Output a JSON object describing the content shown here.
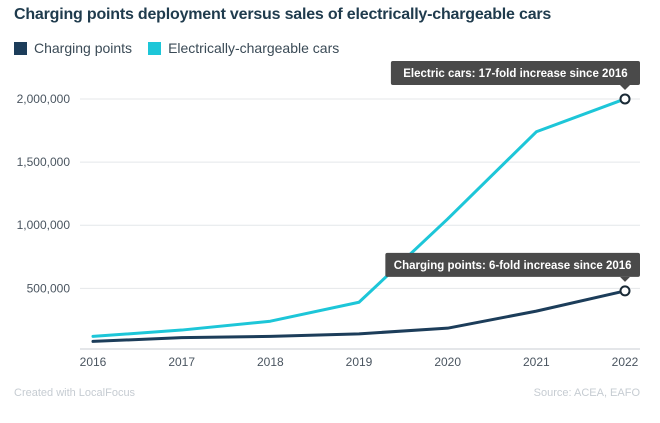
{
  "chart_data": {
    "type": "line",
    "title": "Charging points deployment versus sales of electrically-chargeable cars",
    "x": [
      "2016",
      "2017",
      "2018",
      "2019",
      "2020",
      "2021",
      "2022"
    ],
    "series": [
      {
        "name": "Charging points",
        "color": "#1c3d5a",
        "values": [
          80000,
          110000,
          120000,
          140000,
          185000,
          320000,
          480000
        ]
      },
      {
        "name": "Electrically-chargeable cars",
        "color": "#1dc6d8",
        "values": [
          120000,
          170000,
          240000,
          390000,
          1050000,
          1740000,
          2000000
        ]
      }
    ],
    "yticks": [
      "500,000",
      "1,000,000",
      "1,500,000",
      "2,000,000"
    ],
    "ytick_values": [
      500000,
      1000000,
      1500000,
      2000000
    ],
    "ylim": [
      20000,
      2150000
    ],
    "xlabel": "",
    "ylabel": "",
    "annotations": [
      {
        "series": 1,
        "index": 6,
        "text": "Electric cars: 17-fold increase since 2016"
      },
      {
        "series": 0,
        "index": 6,
        "text": "Charging points: 6-fold increase since 2016"
      }
    ]
  },
  "footer": {
    "credit": "Created with LocalFocus",
    "source": "Source: ACEA, EAFO"
  }
}
